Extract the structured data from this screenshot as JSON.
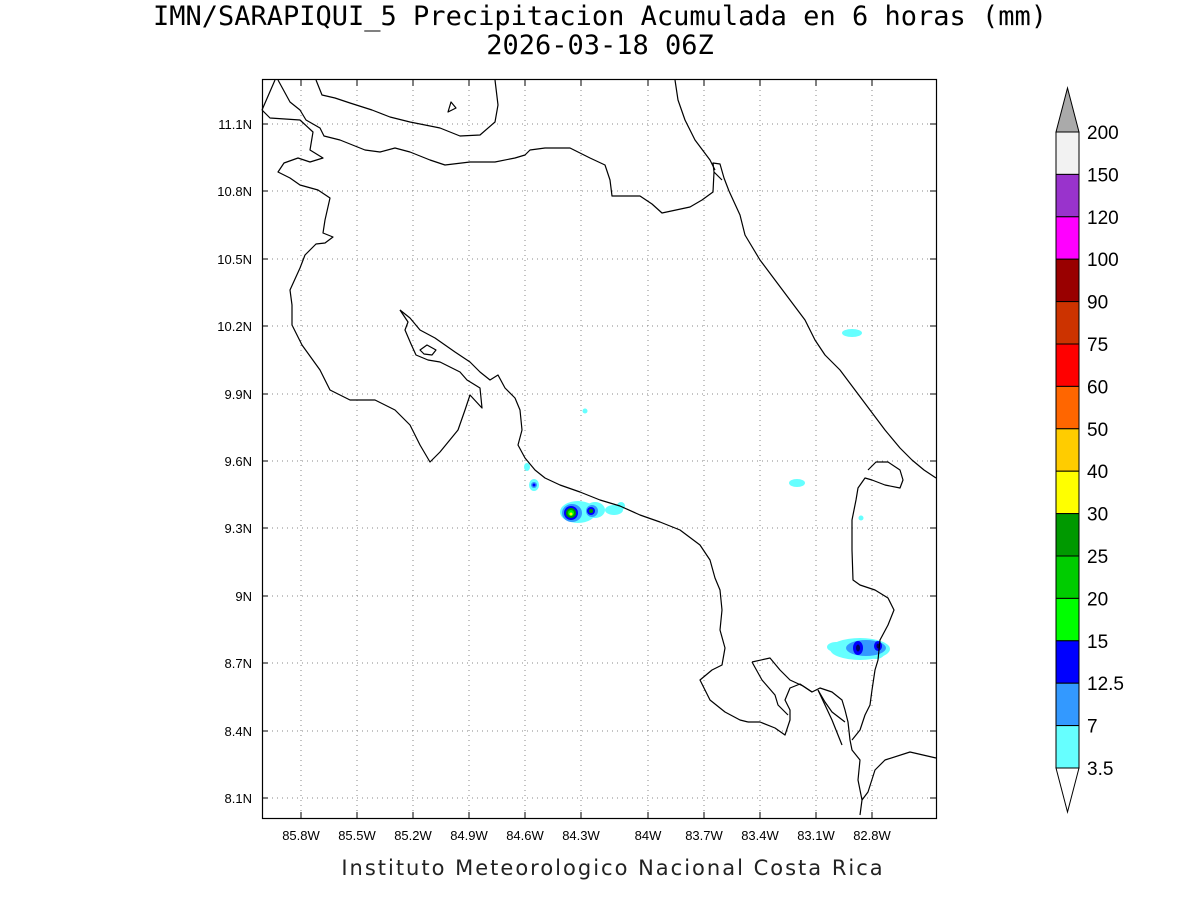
{
  "title": {
    "line1": "IMN/SARAPIQUI_5 Precipitacion Acumulada en 6 horas (mm)",
    "line2": "2026-03-18 06Z"
  },
  "footer": "Instituto Meteorologico Nacional Costa Rica",
  "map": {
    "lon_range": [
      -85.97,
      -82.52
    ],
    "lat_range": [
      8.0,
      11.3
    ],
    "x_ticks": [
      "85.8W",
      "85.5W",
      "85.2W",
      "84.9W",
      "84.6W",
      "84.3W",
      "84W",
      "83.7W",
      "83.4W",
      "83.1W",
      "82.8W"
    ],
    "y_ticks": [
      "11.1N",
      "10.8N",
      "10.5N",
      "10.2N",
      "9.9N",
      "9.6N",
      "9.3N",
      "9N",
      "8.7N",
      "8.4N",
      "8.1N"
    ]
  },
  "colorbar": {
    "levels": [
      "200",
      "150",
      "120",
      "100",
      "90",
      "75",
      "60",
      "50",
      "40",
      "30",
      "25",
      "20",
      "15",
      "12.5",
      "7",
      "3.5"
    ],
    "colors": [
      "#f2f2f2",
      "#9933cc",
      "#ff00ff",
      "#990000",
      "#cc3300",
      "#ff0000",
      "#ff6600",
      "#ffcc00",
      "#ffff00",
      "#009900",
      "#00cc00",
      "#00ff00",
      "#0000ff",
      "#3399ff",
      "#66ffff"
    ],
    "over_color": "#aaaaaa",
    "under_color": "#ffffff"
  }
}
